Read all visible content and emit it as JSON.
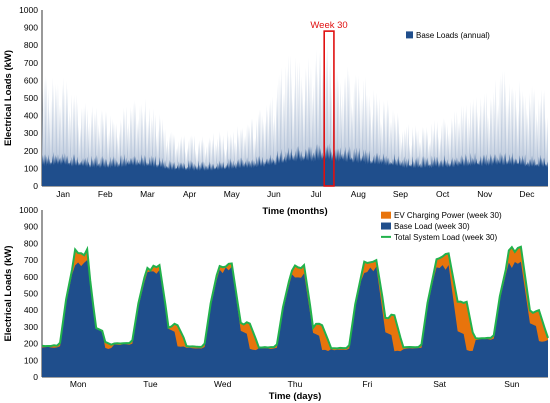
{
  "chart_data": [
    {
      "type": "area",
      "xlabel": "Time (months)",
      "ylabel": "Electrical Loads (kW)",
      "ylim": [
        0,
        1000
      ],
      "yticks": [
        0,
        100,
        200,
        300,
        400,
        500,
        600,
        700,
        800,
        900,
        1000
      ],
      "categories": [
        "Jan",
        "Feb",
        "Mar",
        "Apr",
        "May",
        "Jun",
        "Jul",
        "Aug",
        "Sep",
        "Oct",
        "Nov",
        "Dec"
      ],
      "legend_position": "top-right",
      "series": [
        {
          "name": "Base Loads  (annual)",
          "color": "#1f4e8c",
          "highlight_color": "#b8c6da",
          "weekly_peak": [
            640,
            650,
            660,
            600,
            480,
            470,
            460,
            440,
            420,
            520,
            530,
            480,
            420,
            330,
            300,
            310,
            290,
            300,
            320,
            330,
            350,
            380,
            420,
            500,
            600,
            780,
            750,
            730,
            760,
            880,
            720,
            700,
            680,
            660,
            580,
            530,
            470,
            380,
            350,
            360,
            370,
            400,
            420,
            480,
            520,
            560,
            560,
            670,
            650,
            610,
            580,
            560
          ],
          "weekly_mean": [
            160,
            165,
            170,
            160,
            150,
            150,
            148,
            145,
            150,
            160,
            155,
            150,
            145,
            130,
            125,
            125,
            122,
            125,
            130,
            132,
            140,
            145,
            150,
            160,
            170,
            190,
            195,
            200,
            200,
            210,
            200,
            195,
            190,
            180,
            175,
            170,
            160,
            150,
            145,
            145,
            148,
            150,
            152,
            155,
            160,
            160,
            165,
            170,
            165,
            160,
            155,
            150
          ]
        }
      ],
      "annotation": {
        "label": "Week 30",
        "week_index": 29,
        "color": "#e01010"
      }
    },
    {
      "type": "area",
      "xlabel": "Time (days)",
      "ylabel": "Electrical Loads (kW)",
      "ylim": [
        0,
        1000
      ],
      "yticks": [
        0,
        100,
        200,
        300,
        400,
        500,
        600,
        700,
        800,
        900,
        1000
      ],
      "categories": [
        "Mon",
        "Tue",
        "Wed",
        "Thu",
        "Fri",
        "Sat",
        "Sun"
      ],
      "legend_position": "top-right",
      "daily_base_peak": [
        700,
        640,
        660,
        620,
        660,
        670,
        690
      ],
      "daily_total_peak": [
        765,
        670,
        680,
        670,
        700,
        740,
        780
      ],
      "night_total": [
        185,
        200,
        180,
        175,
        170,
        175,
        230
      ],
      "evening_ev_level": [
        210,
        310,
        320,
        310,
        370,
        450,
        400
      ],
      "series": [
        {
          "name": "EV Charging Power (week 30)",
          "color": "#e8740c"
        },
        {
          "name": "Base Load (week 30)",
          "color": "#1f4e8c"
        },
        {
          "name": "Total System Load (week 30)",
          "color": "#22b24c"
        }
      ]
    }
  ]
}
